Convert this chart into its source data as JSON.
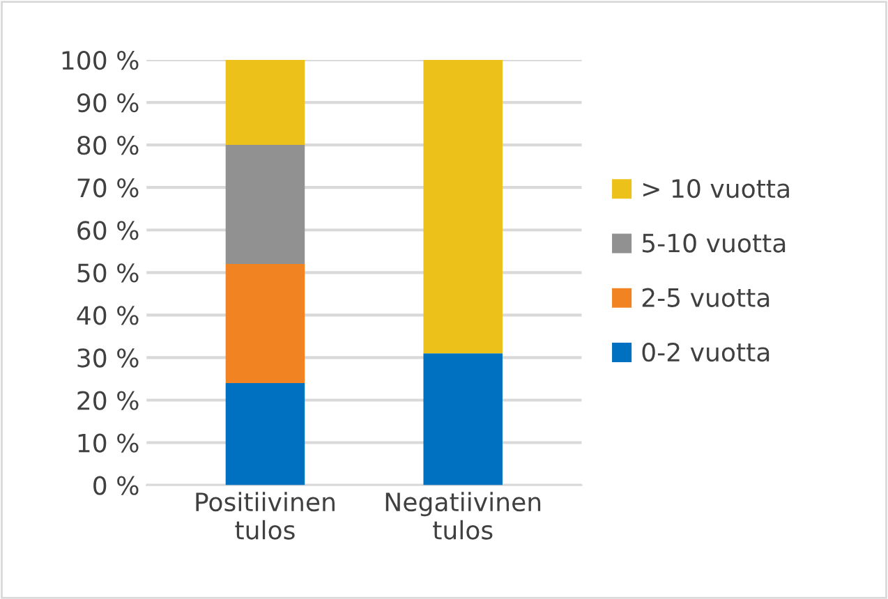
{
  "chart_data": {
    "type": "bar",
    "stacked": true,
    "categories": [
      "Positiivinen\ntulos",
      "Negatiivinen\ntulos"
    ],
    "series": [
      {
        "name": "0-2 vuotta",
        "color": "#0070c0",
        "values": [
          24,
          31
        ]
      },
      {
        "name": "2-5 vuotta",
        "color": "#f28322",
        "values": [
          28,
          0
        ]
      },
      {
        "name": "5-10 vuotta",
        "color": "#919191",
        "values": [
          28,
          0
        ]
      },
      {
        "name": "> 10 vuotta",
        "color": "#ecc119",
        "values": [
          20,
          69
        ]
      }
    ],
    "ylim": [
      0,
      100
    ],
    "yticks": [
      {
        "value": 0,
        "label": "0 %"
      },
      {
        "value": 10,
        "label": "10 %"
      },
      {
        "value": 20,
        "label": "20 %"
      },
      {
        "value": 30,
        "label": "30 %"
      },
      {
        "value": 40,
        "label": "40 %"
      },
      {
        "value": 50,
        "label": "50 %"
      },
      {
        "value": 60,
        "label": "60 %"
      },
      {
        "value": 70,
        "label": "70 %"
      },
      {
        "value": 80,
        "label": "80 %"
      },
      {
        "value": 90,
        "label": "90 %"
      },
      {
        "value": 100,
        "label": "100 %"
      }
    ],
    "grid": "y",
    "legend": "right"
  }
}
